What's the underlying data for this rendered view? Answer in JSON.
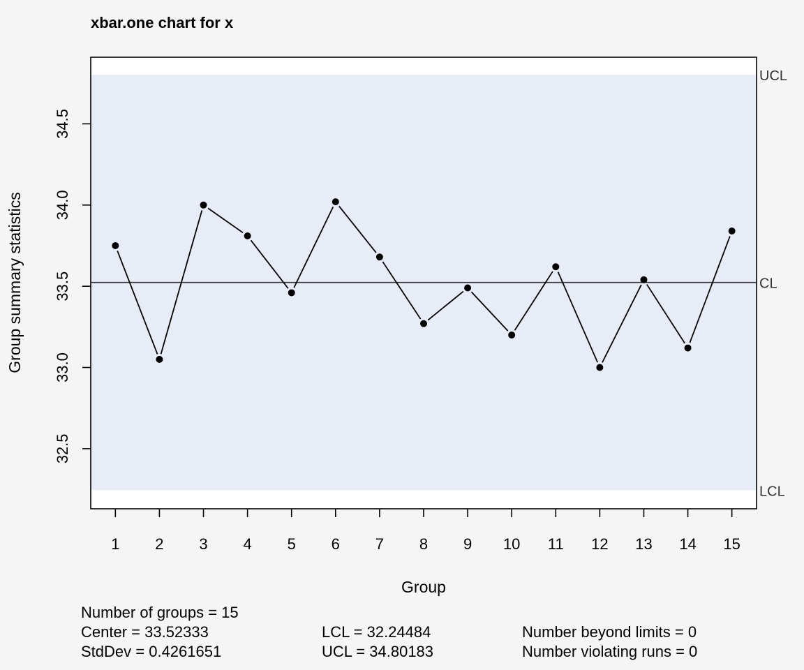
{
  "chart_data": {
    "type": "line",
    "title": "xbar.one chart for x",
    "xlabel": "Group",
    "ylabel": "Group summary statistics",
    "x": [
      1,
      2,
      3,
      4,
      5,
      6,
      7,
      8,
      9,
      10,
      11,
      12,
      13,
      14,
      15
    ],
    "x_tick_labels": [
      "1",
      "2",
      "3",
      "4",
      "5",
      "6",
      "7",
      "8",
      "9",
      "10",
      "11",
      "12",
      "13",
      "14",
      "15"
    ],
    "values": [
      33.75,
      33.05,
      34.0,
      33.81,
      33.46,
      34.02,
      33.68,
      33.27,
      33.49,
      33.2,
      33.62,
      33.0,
      33.54,
      33.12,
      33.84
    ],
    "y_ticks": [
      32.5,
      33.0,
      33.5,
      34.0,
      34.5
    ],
    "y_tick_labels": [
      "32.5",
      "33.0",
      "33.5",
      "34.0",
      "34.5"
    ],
    "ylim": [
      32.13,
      34.91
    ],
    "xlim": [
      0.44,
      15.56
    ],
    "center_line": 33.52333,
    "lcl": 32.24484,
    "ucl": 34.80183,
    "limit_labels": {
      "ucl": "UCL",
      "cl": "CL",
      "lcl": "LCL"
    },
    "grid": false,
    "colors": {
      "background": "#f5f5f5",
      "plot_area": "#ffffff",
      "control_band": "#e7ecf7",
      "line": "#000000",
      "points": "#000000",
      "limit_label": "#333333"
    }
  },
  "stats": {
    "groups": "Number of groups = 15",
    "center": "Center = 33.52333",
    "stddev": "StdDev = 0.4261651",
    "lcl": "LCL = 32.24484",
    "ucl": "UCL = 34.80183",
    "beyond": "Number beyond limits = 0",
    "violating": "Number violating runs = 0"
  }
}
